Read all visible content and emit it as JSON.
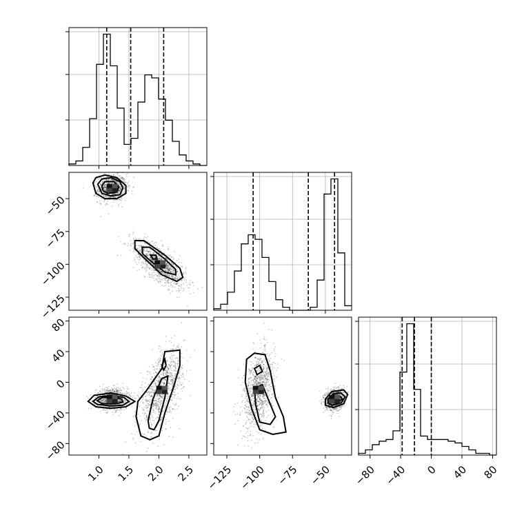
{
  "chart_data": {
    "type": "corner",
    "title": "",
    "parameters": [
      {
        "name": "",
        "range": [
          0.5,
          2.8
        ],
        "ticks": [
          1.0,
          1.5,
          2.0,
          2.5
        ],
        "tick_labels": [
          "1.0",
          "1.5",
          "2.0",
          "2.5"
        ],
        "quantiles": [
          1.13,
          1.53,
          2.08
        ],
        "histogram": {
          "edges": [
            0.5,
            0.615,
            0.73,
            0.845,
            0.96,
            1.075,
            1.19,
            1.305,
            1.42,
            1.535,
            1.65,
            1.765,
            1.88,
            1.995,
            2.11,
            2.225,
            2.34,
            2.455,
            2.57,
            2.685,
            2.8
          ],
          "counts": [
            1,
            3,
            12,
            31,
            67,
            87,
            66,
            38,
            14,
            18,
            42,
            60,
            58,
            44,
            30,
            16,
            7,
            3,
            1,
            0
          ]
        }
      },
      {
        "name": "",
        "range": [
          -135,
          -30
        ],
        "ticks": [
          -125,
          -100,
          -75,
          -50
        ],
        "tick_labels": [
          "−125",
          "−100",
          "−75",
          "−50"
        ],
        "quantiles": [
          -105,
          -63,
          -43
        ],
        "histogram": {
          "edges": [
            -135,
            -129.75,
            -124.5,
            -119.25,
            -114,
            -108.75,
            -103.5,
            -98.25,
            -93,
            -87.75,
            -82.5,
            -77.25,
            -72,
            -66.75,
            -61.5,
            -56.25,
            -51,
            -45.75,
            -40.5,
            -35.25,
            -30
          ],
          "counts": [
            1,
            4,
            12,
            26,
            44,
            50,
            47,
            35,
            19,
            7,
            2,
            0,
            0,
            0,
            2,
            20,
            77,
            87,
            38,
            3
          ]
        }
      },
      {
        "name": "",
        "range": [
          -95,
          85
        ],
        "ticks": [
          -80,
          -40,
          0,
          40,
          80
        ],
        "tick_labels": [
          "−80",
          "−40",
          "0",
          "40",
          "80"
        ],
        "quantiles": [
          -38,
          -22,
          0
        ],
        "histogram": {
          "edges": [
            -95,
            -86,
            -77,
            -68,
            -59,
            -50,
            -41,
            -32,
            -23,
            -14,
            -5,
            4,
            13,
            22,
            31,
            40,
            49,
            58,
            67,
            76,
            85
          ],
          "counts": [
            1,
            3,
            6,
            8,
            9,
            14,
            48,
            76,
            38,
            11,
            9,
            9,
            9,
            8,
            7,
            5,
            3,
            1,
            1,
            0
          ]
        }
      }
    ],
    "scatter_clusters": [
      {
        "center": [
          1.22,
          -42
        ],
        "sd": [
          0.12,
          5
        ],
        "corr": 0.1,
        "count": 900
      },
      {
        "center": [
          2.02,
          -100
        ],
        "sd": [
          0.22,
          9
        ],
        "corr": -0.7,
        "count": 1000
      }
    ],
    "scatter_clusters_02": [
      {
        "center": [
          1.22,
          -22
        ],
        "sd": [
          0.13,
          7
        ],
        "corr": 0.0,
        "count": 900
      },
      {
        "center": [
          2.05,
          -10
        ],
        "sd": [
          0.18,
          26
        ],
        "corr": 0.55,
        "count": 1000
      }
    ],
    "scatter_clusters_12": [
      {
        "center": [
          -101,
          -10
        ],
        "sd": [
          6,
          26
        ],
        "corr": 0.35,
        "count": 1000
      },
      {
        "center": [
          -43,
          -22
        ],
        "sd": [
          3.5,
          7
        ],
        "corr": 0.2,
        "count": 900
      }
    ],
    "contours_01": [
      [
        [
          0.9,
          -38
        ],
        [
          0.95,
          -34
        ],
        [
          1.1,
          -32
        ],
        [
          1.3,
          -34
        ],
        [
          1.45,
          -40
        ],
        [
          1.45,
          -46
        ],
        [
          1.3,
          -50
        ],
        [
          1.1,
          -50
        ],
        [
          0.95,
          -46
        ]
      ],
      [
        [
          0.98,
          -39
        ],
        [
          1.05,
          -35
        ],
        [
          1.2,
          -34
        ],
        [
          1.35,
          -37
        ],
        [
          1.4,
          -42
        ],
        [
          1.35,
          -47
        ],
        [
          1.2,
          -48
        ],
        [
          1.05,
          -46
        ]
      ],
      [
        [
          1.05,
          -40
        ],
        [
          1.1,
          -37
        ],
        [
          1.25,
          -37
        ],
        [
          1.33,
          -41
        ],
        [
          1.3,
          -45
        ],
        [
          1.15,
          -46
        ],
        [
          1.07,
          -44
        ]
      ],
      [
        [
          1.6,
          -82
        ],
        [
          1.75,
          -82
        ],
        [
          2.1,
          -93
        ],
        [
          2.35,
          -103
        ],
        [
          2.4,
          -110
        ],
        [
          2.3,
          -113
        ],
        [
          2.05,
          -108
        ],
        [
          1.75,
          -95
        ],
        [
          1.6,
          -88
        ]
      ],
      [
        [
          1.72,
          -87
        ],
        [
          1.85,
          -87
        ],
        [
          2.1,
          -96
        ],
        [
          2.28,
          -104
        ],
        [
          2.28,
          -108
        ],
        [
          2.1,
          -106
        ],
        [
          1.85,
          -97
        ],
        [
          1.73,
          -92
        ]
      ],
      [
        [
          1.86,
          -93
        ],
        [
          1.95,
          -93
        ],
        [
          1.97,
          -96
        ],
        [
          1.9,
          -96
        ]
      ]
    ],
    "contours_02": [
      [
        [
          0.82,
          -25
        ],
        [
          0.92,
          -17
        ],
        [
          1.2,
          -14
        ],
        [
          1.45,
          -18
        ],
        [
          1.6,
          -25
        ],
        [
          1.45,
          -32
        ],
        [
          1.2,
          -34
        ],
        [
          0.95,
          -32
        ]
      ],
      [
        [
          0.9,
          -25
        ],
        [
          1.0,
          -19
        ],
        [
          1.22,
          -17
        ],
        [
          1.42,
          -20
        ],
        [
          1.5,
          -25
        ],
        [
          1.4,
          -30
        ],
        [
          1.2,
          -31
        ],
        [
          0.98,
          -29
        ]
      ],
      [
        [
          0.97,
          -24
        ],
        [
          1.05,
          -20
        ],
        [
          1.25,
          -19
        ],
        [
          1.38,
          -22
        ],
        [
          1.4,
          -26
        ],
        [
          1.28,
          -28
        ],
        [
          1.05,
          -28
        ]
      ],
      [
        [
          1.65,
          -25
        ],
        [
          1.8,
          -10
        ],
        [
          2.05,
          18
        ],
        [
          2.1,
          40
        ],
        [
          2.35,
          42
        ],
        [
          2.35,
          22
        ],
        [
          2.25,
          -5
        ],
        [
          2.1,
          -40
        ],
        [
          2.0,
          -70
        ],
        [
          1.85,
          -75
        ],
        [
          1.7,
          -70
        ],
        [
          1.62,
          -45
        ]
      ],
      [
        [
          1.82,
          -50
        ],
        [
          1.9,
          -22
        ],
        [
          2.05,
          5
        ],
        [
          2.15,
          8
        ],
        [
          2.1,
          -20
        ],
        [
          2.0,
          -50
        ],
        [
          1.92,
          -62
        ],
        [
          1.84,
          -60
        ]
      ],
      [
        [
          2.05,
          22
        ],
        [
          2.1,
          30
        ],
        [
          2.12,
          22
        ],
        [
          2.08,
          16
        ]
      ]
    ],
    "contours_12": [
      [
        [
          -110,
          30
        ],
        [
          -104,
          38
        ],
        [
          -96,
          36
        ],
        [
          -92,
          15
        ],
        [
          -88,
          -20
        ],
        [
          -82,
          -45
        ],
        [
          -80,
          -65
        ],
        [
          -90,
          -68
        ],
        [
          -100,
          -62
        ],
        [
          -106,
          -35
        ],
        [
          -111,
          0
        ]
      ],
      [
        [
          -104,
          -8
        ],
        [
          -98,
          -3
        ],
        [
          -94,
          -20
        ],
        [
          -88,
          -45
        ],
        [
          -92,
          -55
        ],
        [
          -100,
          -52
        ],
        [
          -103,
          -30
        ]
      ],
      [
        [
          -104,
          18
        ],
        [
          -100,
          22
        ],
        [
          -98,
          14
        ],
        [
          -102,
          10
        ]
      ],
      [
        [
          -50,
          -22
        ],
        [
          -45,
          -12
        ],
        [
          -36,
          -10
        ],
        [
          -33,
          -16
        ],
        [
          -36,
          -28
        ],
        [
          -44,
          -33
        ],
        [
          -50,
          -30
        ]
      ],
      [
        [
          -48,
          -22
        ],
        [
          -44,
          -15
        ],
        [
          -38,
          -14
        ],
        [
          -35,
          -19
        ],
        [
          -38,
          -27
        ],
        [
          -45,
          -30
        ],
        [
          -48,
          -27
        ]
      ],
      [
        [
          -46,
          -22
        ],
        [
          -43,
          -18
        ],
        [
          -39,
          -18
        ],
        [
          -37,
          -22
        ],
        [
          -41,
          -27
        ],
        [
          -45,
          -26
        ]
      ]
    ],
    "grid": true
  }
}
